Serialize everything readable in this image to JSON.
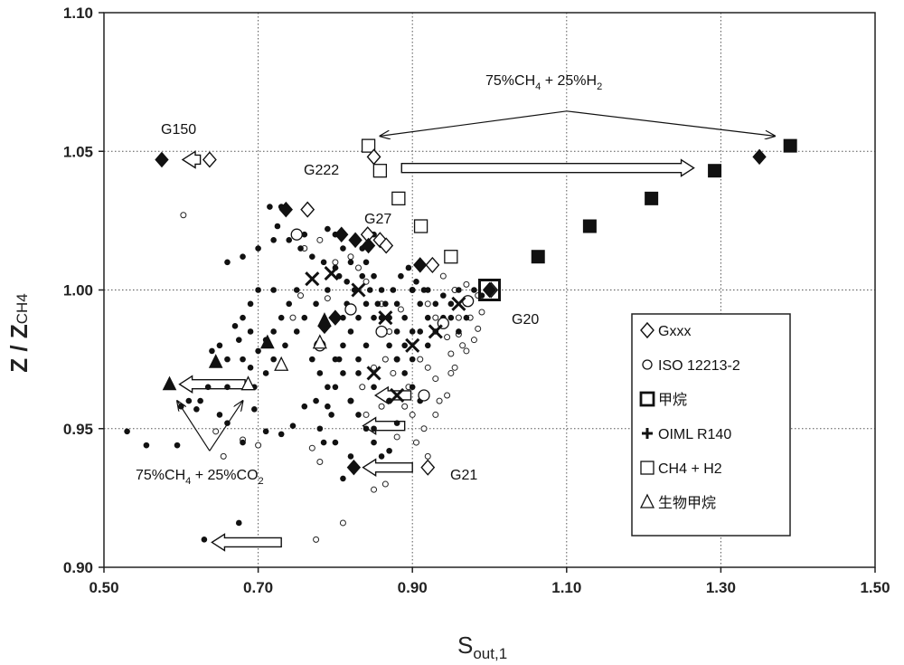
{
  "chart_data": {
    "type": "scatter",
    "title": "",
    "xlabel": "S",
    "xlabel_sub": "out,1",
    "ylabel": "Z / Z",
    "ylabel_sub": "CH4",
    "xlim": [
      0.5,
      1.5
    ],
    "ylim": [
      0.9,
      1.1
    ],
    "x_ticks": [
      0.5,
      0.7,
      0.9,
      1.1,
      1.3,
      1.5
    ],
    "x_tick_labels": [
      "0.50",
      "0.70",
      "0.90",
      "1.10",
      "1.30",
      "1.50"
    ],
    "y_ticks": [
      0.9,
      0.95,
      1.0,
      1.05,
      1.1
    ],
    "y_tick_labels": [
      "0.90",
      "0.95",
      "1.00",
      "1.05",
      "1.10"
    ],
    "grid": "dotted",
    "legend_position": "right",
    "legend": [
      {
        "marker": "diamond-open",
        "label": "Gxxx"
      },
      {
        "marker": "circle-open",
        "label": "ISO 12213-2"
      },
      {
        "marker": "square-bold",
        "label": "甲烷"
      },
      {
        "marker": "plus",
        "label": "OIML R140"
      },
      {
        "marker": "square-open",
        "label": "CH4 + H2"
      },
      {
        "marker": "triangle-open",
        "label": "生物甲烷"
      }
    ],
    "annotations": {
      "g150": "G150",
      "g222": "G222",
      "g27": "G27",
      "g20": "G20",
      "g21": "G21",
      "h2_mix_main": "75%CH",
      "h2_mix_sub1": "4",
      "h2_mix_mid": " + 25%H",
      "h2_mix_sub2": "2",
      "co2_mix_main": "75%CH",
      "co2_mix_sub1": "4",
      "co2_mix_mid": " + 25%CO",
      "co2_mix_sub2": "2"
    },
    "series": [
      {
        "name": "Gxxx (open diamond)",
        "marker": "diamond-open",
        "points": [
          [
            0.637,
            1.047
          ],
          [
            0.764,
            1.029
          ],
          [
            0.842,
            1.02
          ],
          [
            0.858,
            1.018
          ],
          [
            0.866,
            1.016
          ],
          [
            0.926,
            1.009
          ],
          [
            1.002,
            1.0
          ],
          [
            0.92,
            0.936
          ],
          [
            0.85,
            1.048
          ]
        ]
      },
      {
        "name": "H2 / CO2 shifted (filled diamond)",
        "marker": "diamond-filled",
        "points": [
          [
            0.575,
            1.047
          ],
          [
            0.736,
            1.029
          ],
          [
            0.808,
            1.02
          ],
          [
            0.826,
            1.018
          ],
          [
            0.843,
            1.016
          ],
          [
            0.91,
            1.009
          ],
          [
            1.0,
            1.0
          ],
          [
            0.824,
            0.936
          ],
          [
            1.35,
            1.048
          ],
          [
            0.8,
            0.99
          ],
          [
            0.786,
            0.987
          ]
        ]
      },
      {
        "name": "CH4 + H2 (open square)",
        "marker": "square-open",
        "points": [
          [
            0.843,
            1.052
          ],
          [
            0.858,
            1.043
          ],
          [
            0.882,
            1.033
          ],
          [
            0.911,
            1.023
          ],
          [
            0.95,
            1.012
          ]
        ]
      },
      {
        "name": "CH4 + H2 shifted (filled square)",
        "marker": "square-filled",
        "points": [
          [
            1.39,
            1.052
          ],
          [
            1.292,
            1.043
          ],
          [
            1.21,
            1.033
          ],
          [
            1.13,
            1.023
          ],
          [
            1.063,
            1.012
          ]
        ]
      },
      {
        "name": "甲烷 G20",
        "marker": "square-bold",
        "points": [
          [
            1.0,
            1.0
          ]
        ]
      },
      {
        "name": "生物甲烷 (open triangle)",
        "marker": "triangle-open",
        "points": [
          [
            0.687,
            0.966
          ],
          [
            0.73,
            0.973
          ],
          [
            0.78,
            0.981
          ]
        ]
      },
      {
        "name": "Biomethane shifted (filled triangle)",
        "marker": "triangle-filled",
        "points": [
          [
            0.585,
            0.966
          ],
          [
            0.645,
            0.974
          ],
          [
            0.712,
            0.981
          ],
          [
            0.786,
            0.989
          ]
        ]
      },
      {
        "name": "OIML R140 (cross)",
        "marker": "cross",
        "points": [
          [
            0.77,
            1.004
          ],
          [
            0.795,
            1.006
          ],
          [
            0.83,
            1.0
          ],
          [
            0.865,
            0.99
          ],
          [
            0.9,
            0.98
          ],
          [
            0.93,
            0.985
          ],
          [
            0.96,
            0.995
          ],
          [
            0.85,
            0.97
          ],
          [
            0.88,
            0.962
          ]
        ]
      },
      {
        "name": "ISO 12213-2 (open circle, large)",
        "marker": "circle-open-large",
        "points": [
          [
            0.78,
            0.98
          ],
          [
            0.915,
            0.962
          ],
          [
            0.94,
            0.988
          ],
          [
            0.972,
            0.996
          ],
          [
            0.82,
            0.993
          ],
          [
            0.75,
            1.02
          ],
          [
            0.86,
            0.985
          ]
        ]
      },
      {
        "name": "ISO 12213-2 (open circle, small)",
        "marker": "circle-open-small",
        "points": [
          [
            0.603,
            1.027
          ],
          [
            0.645,
            0.949
          ],
          [
            0.655,
            0.94
          ],
          [
            0.68,
            0.946
          ],
          [
            0.7,
            0.944
          ],
          [
            0.775,
            0.91
          ],
          [
            0.81,
            0.916
          ],
          [
            0.85,
            0.928
          ],
          [
            0.865,
            0.93
          ],
          [
            0.77,
            0.943
          ],
          [
            0.78,
            0.938
          ],
          [
            0.87,
            0.96
          ],
          [
            0.92,
            0.94
          ],
          [
            0.92,
            0.972
          ],
          [
            0.93,
            0.968
          ],
          [
            0.95,
            0.977
          ],
          [
            0.96,
            0.984
          ],
          [
            0.975,
            0.99
          ],
          [
            0.9,
            0.955
          ],
          [
            0.88,
            0.947
          ],
          [
            0.84,
            0.955
          ],
          [
            0.86,
            0.958
          ],
          [
            0.93,
            0.955
          ],
          [
            0.945,
            0.962
          ],
          [
            0.955,
            0.972
          ],
          [
            0.965,
            0.98
          ],
          [
            0.985,
            0.986
          ],
          [
            0.99,
            0.992
          ],
          [
            0.91,
            0.975
          ],
          [
            0.895,
            0.965
          ],
          [
            0.88,
            0.975
          ],
          [
            0.87,
            0.985
          ],
          [
            0.86,
            0.995
          ],
          [
            0.84,
            1.003
          ],
          [
            0.83,
            1.008
          ],
          [
            0.82,
            1.012
          ],
          [
            0.8,
            1.01
          ],
          [
            0.79,
            0.997
          ],
          [
            0.9,
            1.0
          ],
          [
            0.92,
            0.995
          ],
          [
            0.94,
            1.005
          ],
          [
            0.955,
            1.0
          ],
          [
            0.97,
            1.002
          ],
          [
            0.985,
            0.998
          ],
          [
            0.745,
            0.99
          ],
          [
            0.755,
            0.998
          ],
          [
            0.76,
            1.015
          ],
          [
            0.78,
            1.018
          ],
          [
            0.81,
            1.02
          ],
          [
            0.93,
            0.99
          ],
          [
            0.945,
            0.983
          ],
          [
            0.885,
            0.993
          ],
          [
            0.875,
            0.97
          ],
          [
            0.89,
            0.958
          ],
          [
            0.905,
            0.945
          ],
          [
            0.915,
            0.95
          ],
          [
            0.935,
            0.96
          ],
          [
            0.95,
            0.97
          ],
          [
            0.96,
            0.99
          ],
          [
            0.97,
            0.978
          ],
          [
            0.98,
            0.982
          ],
          [
            0.82,
            0.96
          ],
          [
            0.835,
            0.965
          ],
          [
            0.85,
            0.972
          ],
          [
            0.865,
            0.975
          ]
        ]
      },
      {
        "name": "Data (filled dot)",
        "marker": "dot-filled",
        "points": [
          [
            0.53,
            0.949
          ],
          [
            0.555,
            0.944
          ],
          [
            0.63,
            0.91
          ],
          [
            0.675,
            0.916
          ],
          [
            0.595,
            0.944
          ],
          [
            0.62,
            0.957
          ],
          [
            0.66,
            0.952
          ],
          [
            0.68,
            0.945
          ],
          [
            0.695,
            0.957
          ],
          [
            0.71,
            0.949
          ],
          [
            0.73,
            0.948
          ],
          [
            0.745,
            0.951
          ],
          [
            0.76,
            0.958
          ],
          [
            0.73,
            1.03
          ],
          [
            0.715,
            1.03
          ],
          [
            0.725,
            1.023
          ],
          [
            0.72,
            1.018
          ],
          [
            0.7,
            1.015
          ],
          [
            0.68,
            1.012
          ],
          [
            0.66,
            1.01
          ],
          [
            0.72,
            1.0
          ],
          [
            0.7,
            1.0
          ],
          [
            0.69,
            0.995
          ],
          [
            0.68,
            0.99
          ],
          [
            0.67,
            0.987
          ],
          [
            0.675,
            0.982
          ],
          [
            0.68,
            0.975
          ],
          [
            0.69,
            0.972
          ],
          [
            0.695,
            0.965
          ],
          [
            0.71,
            0.97
          ],
          [
            0.72,
            0.975
          ],
          [
            0.735,
            0.98
          ],
          [
            0.75,
            0.985
          ],
          [
            0.76,
            0.99
          ],
          [
            0.775,
            0.995
          ],
          [
            0.79,
            1.0
          ],
          [
            0.805,
            1.005
          ],
          [
            0.82,
            1.01
          ],
          [
            0.835,
            1.015
          ],
          [
            0.85,
            1.02
          ],
          [
            0.76,
            1.02
          ],
          [
            0.79,
            1.022
          ],
          [
            0.8,
            1.02
          ],
          [
            0.81,
            1.015
          ],
          [
            0.74,
            1.018
          ],
          [
            0.755,
            1.015
          ],
          [
            0.77,
            1.012
          ],
          [
            0.785,
            1.01
          ],
          [
            0.8,
            1.008
          ],
          [
            0.815,
            1.003
          ],
          [
            0.84,
            0.995
          ],
          [
            0.85,
            0.99
          ],
          [
            0.86,
            0.985
          ],
          [
            0.87,
            0.98
          ],
          [
            0.88,
            0.975
          ],
          [
            0.89,
            0.97
          ],
          [
            0.9,
            0.965
          ],
          [
            0.91,
            0.96
          ],
          [
            0.82,
            0.96
          ],
          [
            0.83,
            0.955
          ],
          [
            0.84,
            0.95
          ],
          [
            0.85,
            0.945
          ],
          [
            0.86,
            0.94
          ],
          [
            0.82,
            0.94
          ],
          [
            0.81,
            0.932
          ],
          [
            0.8,
            0.945
          ],
          [
            0.78,
            0.95
          ],
          [
            0.79,
            0.958
          ],
          [
            0.8,
            0.965
          ],
          [
            0.81,
            0.97
          ],
          [
            0.83,
            0.975
          ],
          [
            0.84,
            0.98
          ],
          [
            0.86,
            0.99
          ],
          [
            0.88,
            0.995
          ],
          [
            0.9,
            1.0
          ],
          [
            0.91,
            0.995
          ],
          [
            0.92,
            0.99
          ],
          [
            0.93,
            0.985
          ],
          [
            0.94,
            0.99
          ],
          [
            0.95,
            0.995
          ],
          [
            0.96,
            1.0
          ],
          [
            0.97,
            0.995
          ],
          [
            0.98,
            1.0
          ],
          [
            0.99,
            0.998
          ],
          [
            0.9,
            0.985
          ],
          [
            0.89,
            0.98
          ],
          [
            0.88,
            0.985
          ],
          [
            0.87,
            0.99
          ],
          [
            0.86,
            1.0
          ],
          [
            0.85,
            1.005
          ],
          [
            0.84,
            1.01
          ],
          [
            0.83,
            0.99
          ],
          [
            0.82,
            0.985
          ],
          [
            0.81,
            0.98
          ],
          [
            0.83,
            0.97
          ],
          [
            0.85,
            0.965
          ],
          [
            0.87,
            0.96
          ],
          [
            0.89,
            0.99
          ],
          [
            0.9,
            0.975
          ],
          [
            0.92,
            0.98
          ],
          [
            0.93,
            0.995
          ],
          [
            0.94,
            0.998
          ],
          [
            0.95,
            0.99
          ],
          [
            0.96,
            0.985
          ],
          [
            0.97,
            0.99
          ],
          [
            0.91,
            0.985
          ],
          [
            0.92,
            1.0
          ],
          [
            0.75,
            1.0
          ],
          [
            0.74,
            0.995
          ],
          [
            0.73,
            0.99
          ],
          [
            0.72,
            0.985
          ],
          [
            0.71,
            0.982
          ],
          [
            0.7,
            0.978
          ],
          [
            0.69,
            0.985
          ],
          [
            0.65,
            0.98
          ],
          [
            0.64,
            0.978
          ],
          [
            0.66,
            0.975
          ],
          [
            0.66,
            0.965
          ],
          [
            0.65,
            0.955
          ],
          [
            0.635,
            0.965
          ],
          [
            0.625,
            0.96
          ],
          [
            0.61,
            0.96
          ],
          [
            0.6,
            0.958
          ],
          [
            0.77,
            0.975
          ],
          [
            0.78,
            0.97
          ],
          [
            0.79,
            0.965
          ],
          [
            0.8,
            0.975
          ],
          [
            0.81,
            0.99
          ],
          [
            0.85,
            0.95
          ],
          [
            0.87,
            0.942
          ],
          [
            0.88,
            0.952
          ],
          [
            0.775,
            0.96
          ],
          [
            0.785,
            0.945
          ],
          [
            0.795,
            0.955
          ],
          [
            0.805,
            0.975
          ],
          [
            0.815,
            0.995
          ],
          [
            0.825,
            1.0
          ],
          [
            0.835,
            1.005
          ],
          [
            0.845,
            1.0
          ],
          [
            0.855,
            0.995
          ],
          [
            0.865,
            0.995
          ],
          [
            0.875,
            1.0
          ],
          [
            0.885,
            1.005
          ],
          [
            0.895,
            1.008
          ],
          [
            0.905,
            1.003
          ],
          [
            0.915,
            1.0
          ]
        ]
      }
    ]
  }
}
